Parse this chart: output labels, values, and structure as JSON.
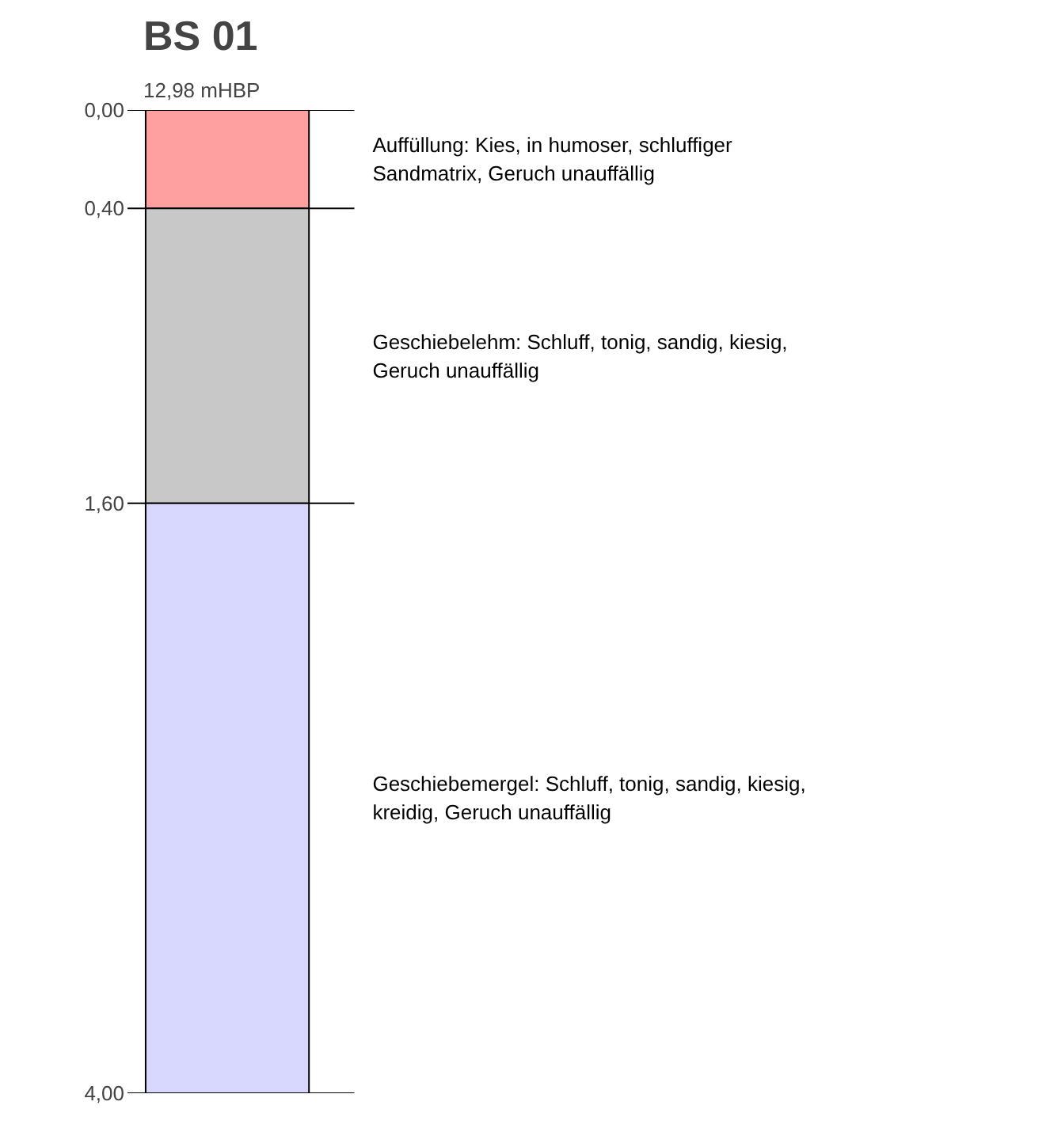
{
  "chart_data": {
    "type": "bar",
    "title": "BS 01",
    "subtitle": "12,98 mHBP",
    "categories": [
      null
    ],
    "stacked": true,
    "series": [
      {
        "name": "Auffüllung: Kies, in humoser, schluffiger Sandmatrix, Geruch unauffällig",
        "color": "#ffa0a0",
        "values": [
          0.4
        ]
      },
      {
        "name": "Geschiebelehm: Schluff, tonig, sandig, kiesig, Geruch unauffällig",
        "color": "#c8c8c8",
        "values": [
          1.2
        ]
      },
      {
        "name": "Geschiebemergel: Schluff, tonig, sandig, kiesig, kreidig, Geruch unauffällig",
        "color": "#d8d8ff",
        "values": [
          2.4
        ]
      }
    ],
    "ylim": [
      4.0,
      0.0
    ],
    "yticks": [
      {
        "value": 0.0,
        "label": "0,00"
      },
      {
        "value": 0.4,
        "label": "0,40"
      },
      {
        "value": 1.6,
        "label": "1,60"
      },
      {
        "value": 4.0,
        "label": "4,00"
      }
    ],
    "grid": false,
    "legend": false
  }
}
